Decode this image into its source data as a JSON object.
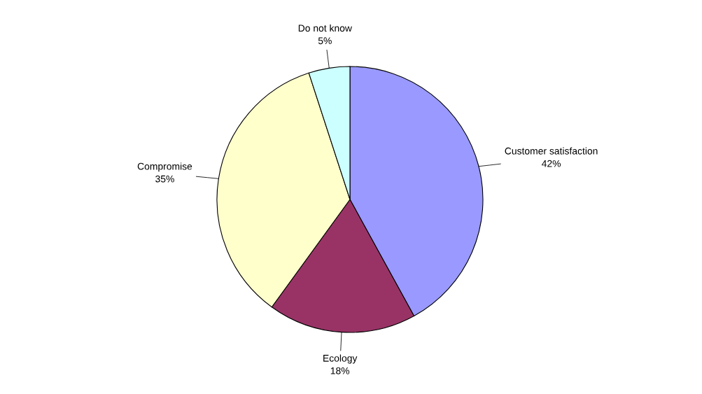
{
  "chart_data": {
    "type": "pie",
    "categories": [
      "Customer satisfaction",
      "Ecology",
      "Compromise",
      "Do not know"
    ],
    "values": [
      42,
      18,
      35,
      5
    ],
    "colors": [
      "#9999ff",
      "#993366",
      "#ffffcc",
      "#ccffff"
    ],
    "value_labels": [
      "42%",
      "18%",
      "35%",
      "5%"
    ]
  }
}
